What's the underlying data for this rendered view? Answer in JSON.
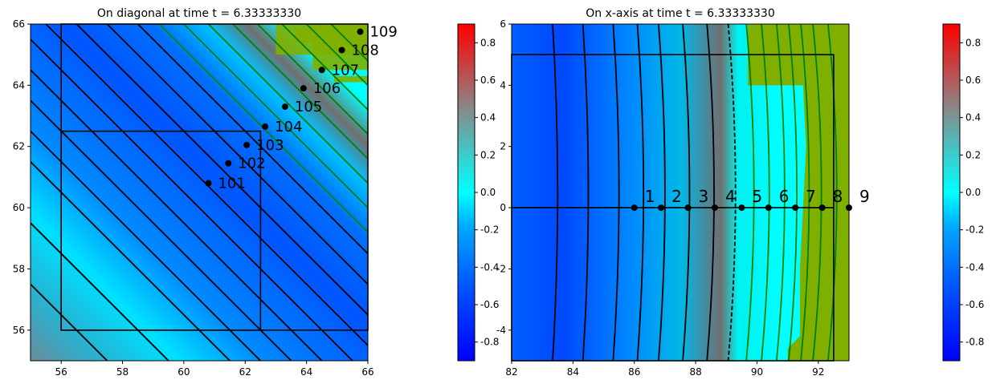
{
  "colors": {
    "cmap": [
      "#0000ff",
      "#0050ff",
      "#00aaff",
      "#00ffff",
      "#888888",
      "#ff0000"
    ],
    "region_fill": "#7fb000",
    "contour_dark": "#000000",
    "contour_green": "#008000"
  },
  "chart_data": [
    {
      "type": "heatmap",
      "title": "On diagonal at time t =     6.33333330",
      "xlim": [
        55,
        66
      ],
      "ylim": [
        55,
        66
      ],
      "xticks": [
        "56",
        "58",
        "60",
        "62",
        "64",
        "66"
      ],
      "yticks": [
        "56",
        "58",
        "60",
        "62",
        "64",
        "66"
      ],
      "rectangles": [
        {
          "x0": 56,
          "y0": 56,
          "x1": 66,
          "y1": 66
        },
        {
          "x0": 56,
          "y0": 56,
          "x1": 62.5,
          "y1": 62.5
        }
      ],
      "points": [
        {
          "label": "101",
          "x": 60.8,
          "y": 60.8
        },
        {
          "label": "102",
          "x": 61.45,
          "y": 61.45
        },
        {
          "label": "103",
          "x": 62.05,
          "y": 62.05
        },
        {
          "label": "104",
          "x": 62.65,
          "y": 62.65
        },
        {
          "label": "105",
          "x": 63.3,
          "y": 63.3
        },
        {
          "label": "106",
          "x": 63.9,
          "y": 63.9
        },
        {
          "label": "107",
          "x": 64.5,
          "y": 64.5
        },
        {
          "label": "108",
          "x": 65.15,
          "y": 65.15
        },
        {
          "label": "109",
          "x": 65.75,
          "y": 65.75
        }
      ],
      "colorbar": {
        "range": [
          -0.9,
          0.9
        ],
        "ticks": [
          "-0.8",
          "-0.6",
          "-0.4",
          "-0.2",
          "0.0",
          "0.2",
          "0.4",
          "0.6",
          "0.8"
        ]
      }
    },
    {
      "type": "heatmap",
      "title": "On x-axis at time t =     6.33333330",
      "xlim": [
        82,
        93
      ],
      "ylim": [
        -5,
        6
      ],
      "xticks": [
        "82",
        "84",
        "86",
        "88",
        "90",
        "92"
      ],
      "yticks": [
        "-4",
        "-2",
        "0",
        "2",
        "4",
        "6"
      ],
      "rectangle": {
        "x0": 82,
        "y0": -5,
        "x1": 92.5,
        "y1": 5
      },
      "points": [
        {
          "label": "1",
          "x": 86.0,
          "y": 0
        },
        {
          "label": "2",
          "x": 86.875,
          "y": 0
        },
        {
          "label": "3",
          "x": 87.75,
          "y": 0
        },
        {
          "label": "4",
          "x": 88.625,
          "y": 0
        },
        {
          "label": "5",
          "x": 89.5,
          "y": 0
        },
        {
          "label": "6",
          "x": 90.375,
          "y": 0
        },
        {
          "label": "7",
          "x": 91.25,
          "y": 0
        },
        {
          "label": "8",
          "x": 92.125,
          "y": 0
        },
        {
          "label": "9",
          "x": 93.0,
          "y": 0
        }
      ],
      "colorbar": {
        "range": [
          -0.9,
          0.9
        ],
        "ticks": [
          "-0.8",
          "-0.6",
          "-0.4",
          "-0.2",
          "0.0",
          "0.2",
          "0.4",
          "0.6",
          "0.8"
        ]
      }
    }
  ]
}
